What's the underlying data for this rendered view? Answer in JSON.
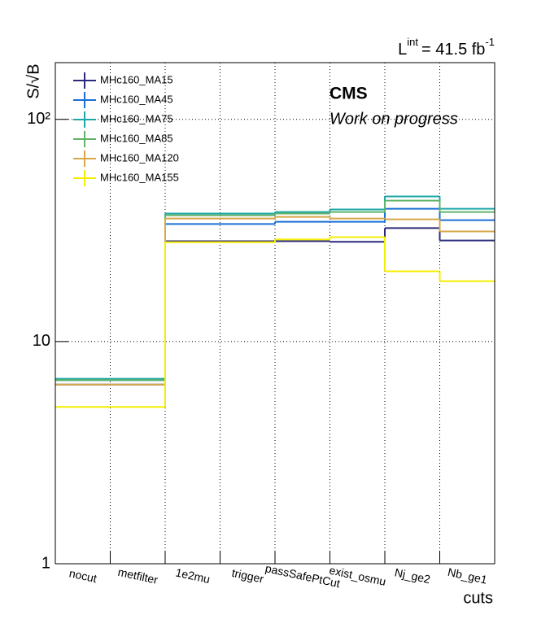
{
  "chart_data": {
    "type": "step",
    "ylabel": "S/√B",
    "xlabel": "cuts",
    "experiment": "CMS",
    "status": "Work on progress",
    "lumi": {
      "symbol": "L",
      "symbol_sup": "int",
      "text": "= 41.5 fb",
      "unit_sup": "-1"
    },
    "categories": [
      "nocut",
      "metfilter",
      "1e2mu",
      "trigger",
      "passSafePtCut",
      "exist_osmu",
      "Nj_ge2",
      "Nb_ge1"
    ],
    "log_y": true,
    "grid": true,
    "legend": "upper-left",
    "ylim": [
      1,
      180
    ],
    "yticks": [
      1,
      10,
      {
        "value": 100,
        "label": "10²"
      }
    ],
    "series": [
      {
        "name": "MHc160_MA15",
        "color": "#2b2a7a",
        "values": [
          6.4,
          6.4,
          28.3,
          28.3,
          28.3,
          28.1,
          32.4,
          28.5
        ]
      },
      {
        "name": "MHc160_MA45",
        "color": "#1a6fd6",
        "values": [
          6.7,
          6.7,
          33.8,
          33.8,
          34.6,
          34.6,
          39.6,
          35.2
        ]
      },
      {
        "name": "MHc160_MA75",
        "color": "#1ea7a7",
        "values": [
          6.8,
          6.8,
          37.7,
          37.7,
          38.3,
          39.3,
          45.0,
          39.6
        ]
      },
      {
        "name": "MHc160_MA85",
        "color": "#62b36a",
        "values": [
          6.7,
          6.7,
          37.0,
          37.0,
          37.7,
          38.3,
          43.1,
          38.3
        ]
      },
      {
        "name": "MHc160_MA120",
        "color": "#d6a748",
        "values": [
          6.4,
          6.4,
          35.8,
          35.8,
          36.4,
          35.8,
          35.5,
          31.3
        ]
      },
      {
        "name": "MHc160_MA155",
        "color": "#f4ee00",
        "values": [
          5.08,
          5.08,
          28.0,
          28.0,
          28.8,
          29.5,
          20.7,
          18.7
        ]
      }
    ]
  }
}
